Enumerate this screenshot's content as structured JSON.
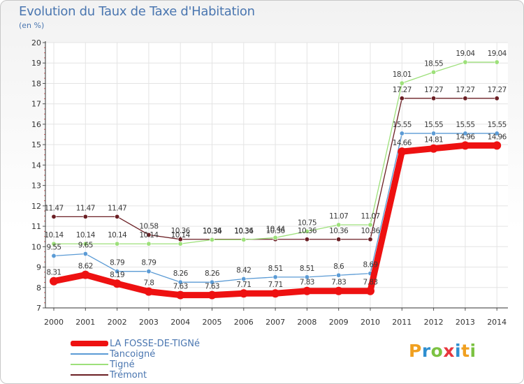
{
  "chart_data": {
    "type": "line",
    "title": "Evolution du Taux de Taxe d'Habitation",
    "ylabel": "(en %)",
    "xlabel": "",
    "ylim": [
      7,
      20
    ],
    "yticks": [
      "7",
      "8",
      "9",
      "10",
      "11",
      "12",
      "13",
      "14",
      "15",
      "16",
      "17",
      "18",
      "19",
      "20"
    ],
    "categories": [
      "2000",
      "2001",
      "2002",
      "2003",
      "2004",
      "2005",
      "2006",
      "2007",
      "2008",
      "2009",
      "2010",
      "2011",
      "2012",
      "2013",
      "2014"
    ],
    "grid": true,
    "legend_position": "bottom-left",
    "series": [
      {
        "name": "Trémont",
        "color": "#6b1f24",
        "values": [
          11.47,
          11.47,
          11.47,
          10.58,
          10.36,
          10.36,
          10.36,
          10.36,
          10.36,
          10.36,
          10.36,
          17.27,
          17.27,
          17.27,
          17.27
        ],
        "labels": [
          "11.47",
          "11.47",
          "11.47",
          "10.58",
          "10.36",
          "10.36",
          "10.36",
          "10.36",
          "10.36",
          "10.36",
          "10.36",
          "17.27",
          "17.27",
          "17.27",
          "17.27"
        ]
      },
      {
        "name": "Tigné",
        "color": "#9de07a",
        "values": [
          10.14,
          10.14,
          10.14,
          10.14,
          10.14,
          10.34,
          10.34,
          10.44,
          10.75,
          11.07,
          11.07,
          18.01,
          18.55,
          19.04,
          19.04
        ],
        "labels": [
          "10.14",
          "10.14",
          "10.14",
          "10.14",
          "10.14",
          "10.34",
          "10.34",
          "10.44",
          "10.75",
          "11.07",
          "11.07",
          "18.01",
          "18.55",
          "19.04",
          "19.04"
        ]
      },
      {
        "name": "Tancoigné",
        "color": "#5b9bd5",
        "values": [
          9.55,
          9.65,
          8.79,
          8.79,
          8.26,
          8.26,
          8.42,
          8.51,
          8.51,
          8.6,
          8.69,
          15.55,
          15.55,
          15.55,
          15.55
        ],
        "labels": [
          "9.55",
          "9.65",
          "8.79",
          "8.79",
          "8.26",
          "8.26",
          "8.42",
          "8.51",
          "8.51",
          "8.6",
          "8.69",
          "15.55",
          "15.55",
          "15.55",
          "15.55"
        ]
      },
      {
        "name": "LA FOSSE-DE-TIGNé",
        "color": "#ee1111",
        "values": [
          8.31,
          8.62,
          8.19,
          7.8,
          7.63,
          7.63,
          7.71,
          7.71,
          7.83,
          7.83,
          7.83,
          14.66,
          14.81,
          14.96,
          14.96
        ],
        "labels": [
          "8.31",
          "8.62",
          "8.19",
          "7.8",
          "7.63",
          "7.63",
          "7.71",
          "7.71",
          "7.83",
          "7.83",
          "7.83",
          "14.66",
          "14.81",
          "14.96",
          "14.96"
        ]
      }
    ]
  },
  "legend": {
    "items": [
      {
        "label": "LA FOSSE-DE-TIGNé",
        "color": "#ee1111"
      },
      {
        "label": "Tancoigné",
        "color": "#5b9bd5"
      },
      {
        "label": "Tigné",
        "color": "#9de07a"
      },
      {
        "label": "Trémont",
        "color": "#6b1f24"
      }
    ]
  },
  "logo": {
    "letters": [
      "P",
      "r",
      "o",
      "x",
      "i",
      "t",
      "i"
    ],
    "colors": [
      "#f0a020",
      "#2f8fd0",
      "#7cc242",
      "#e8363d",
      "#2f8fd0",
      "#f0a020",
      "#7cc242"
    ]
  }
}
